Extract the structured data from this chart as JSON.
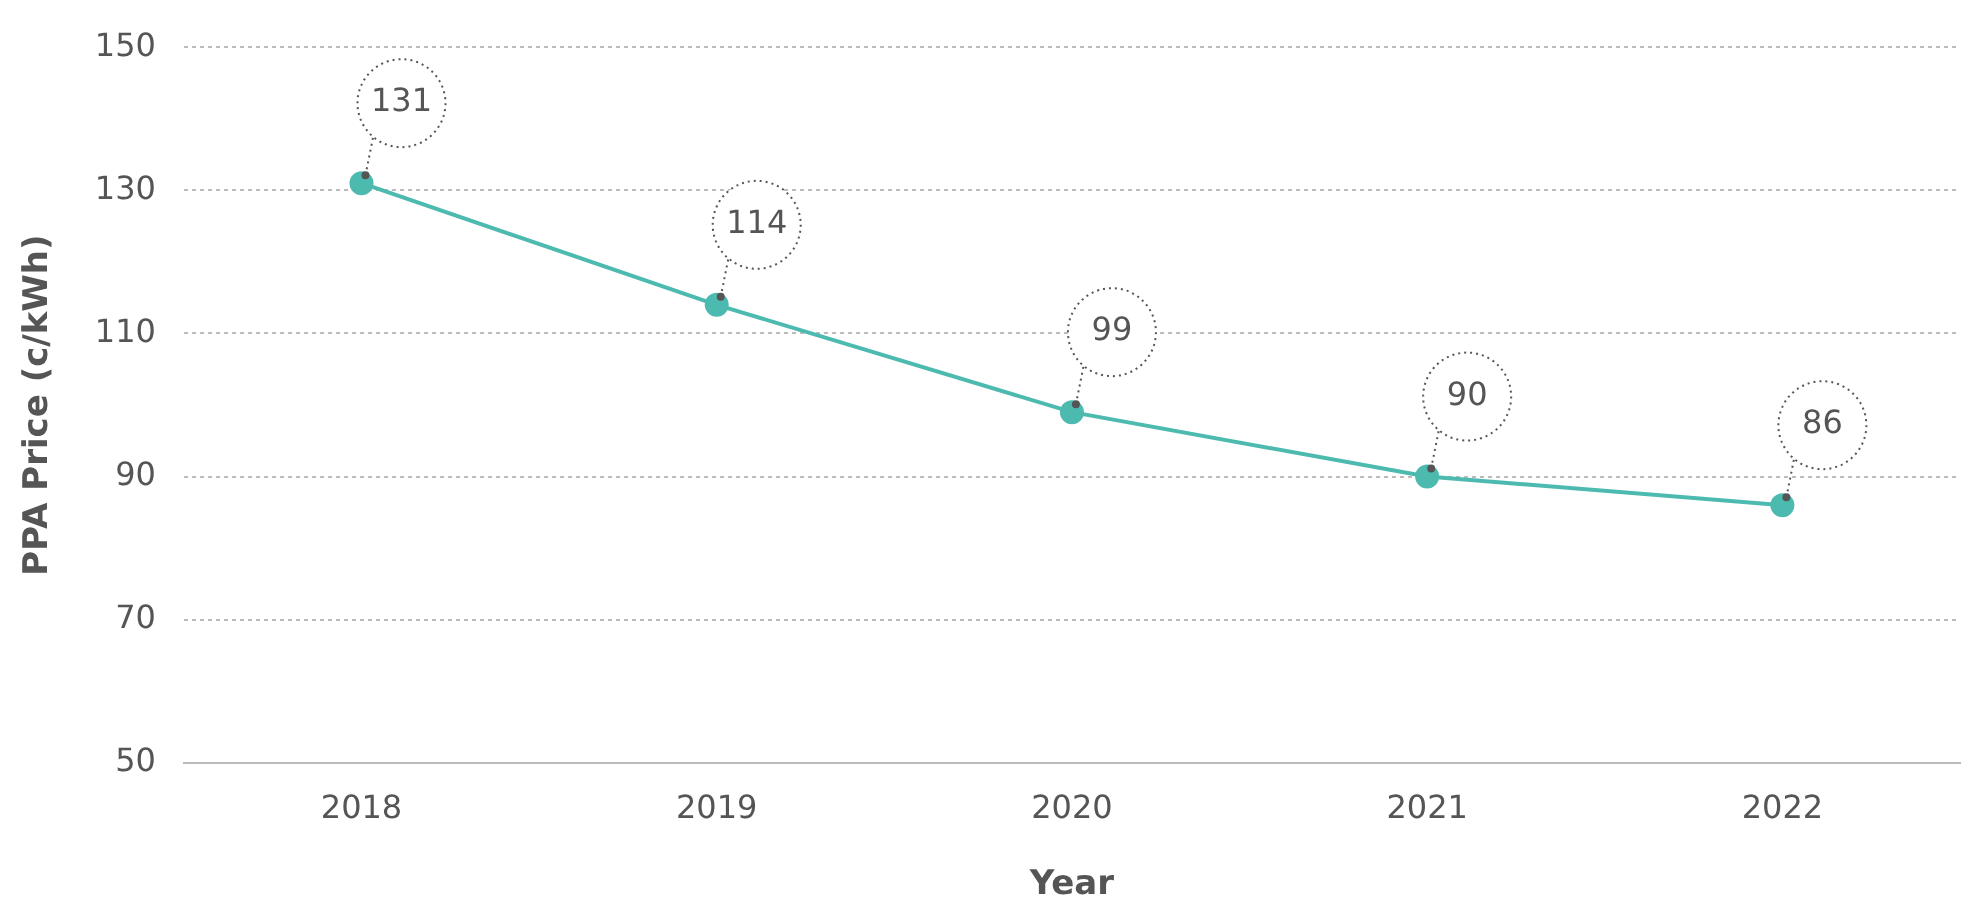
{
  "chart_data": {
    "type": "line",
    "xlabel": "Year",
    "ylabel": "PPA Price (c/kWh)",
    "categories": [
      "2018",
      "2019",
      "2020",
      "2021",
      "2022"
    ],
    "series": [
      {
        "color": "#4dbab0",
        "values": [
          131,
          114,
          99,
          90,
          86
        ]
      }
    ],
    "ylim": [
      50,
      150
    ],
    "yticks": [
      50,
      70,
      90,
      110,
      130,
      150
    ],
    "grid": "y",
    "marker": "circle",
    "line_style": "solid",
    "data_labels": true,
    "legend": false
  }
}
